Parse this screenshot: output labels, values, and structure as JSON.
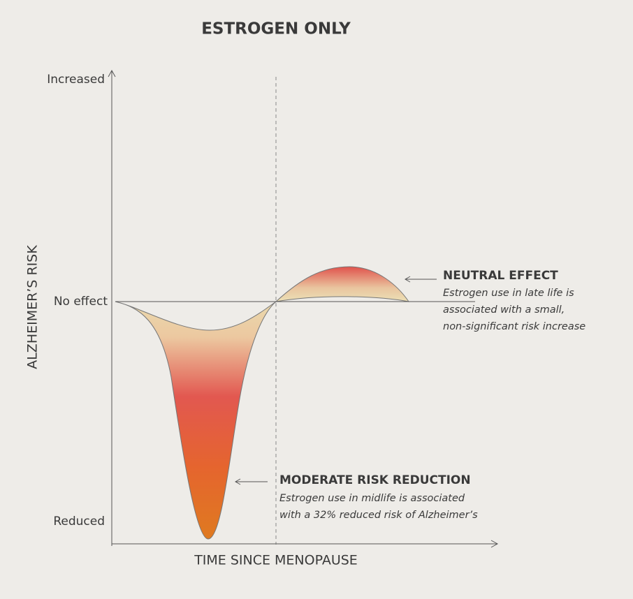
{
  "title": "ESTROGEN ONLY",
  "y_axis": {
    "label": "ALZHEIMER’S RISK",
    "levels": [
      "Increased",
      "No effect",
      "Reduced"
    ]
  },
  "x_axis": {
    "label": "TIME SINCE MENOPAUSE"
  },
  "annotations": [
    {
      "heading": "NEUTRAL EFFECT",
      "lines": [
        "Estrogen use in late life is",
        "associated with a small,",
        "non-significant risk increase"
      ]
    },
    {
      "heading": "MODERATE RISK REDUCTION",
      "lines": [
        "Estrogen use in midlife is associated",
        "with a 32% reduced risk of Alzheimer’s"
      ]
    }
  ]
}
